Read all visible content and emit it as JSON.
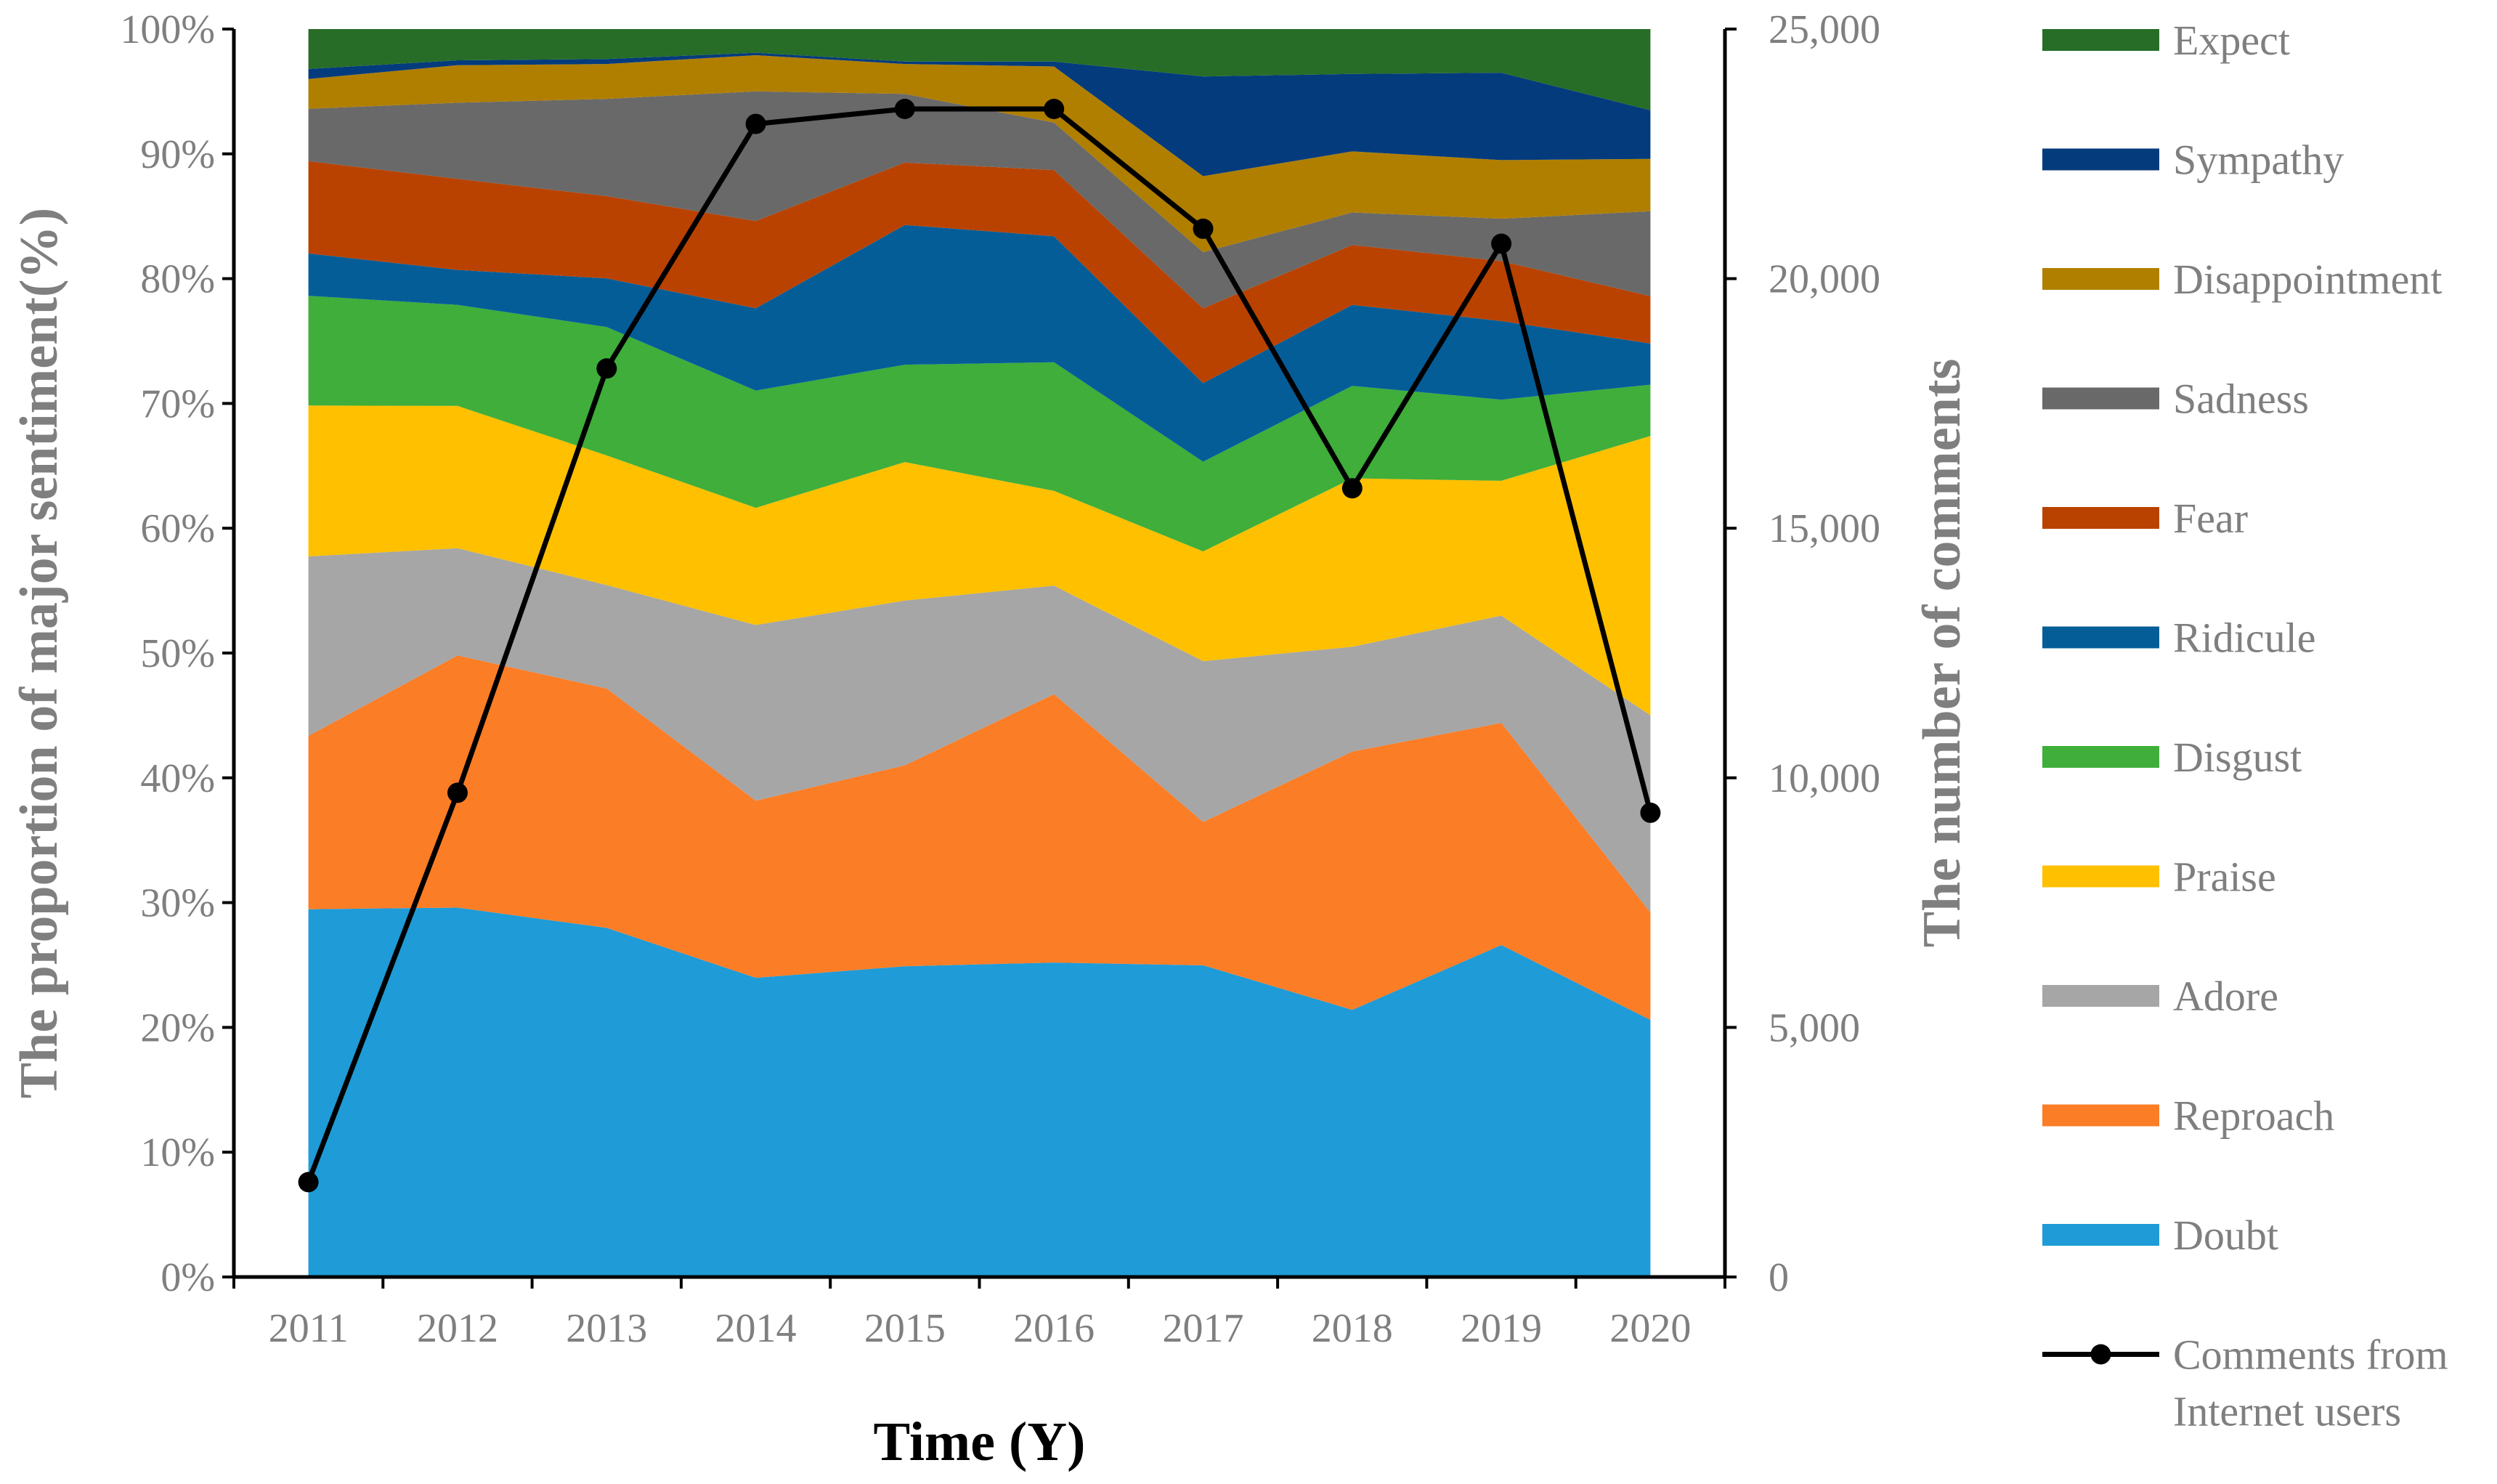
{
  "chart_data": {
    "type": "area",
    "stacked": true,
    "percent": true,
    "categories": [
      "2011",
      "2012",
      "2013",
      "2014",
      "2015",
      "2016",
      "2017",
      "2018",
      "2019",
      "2020"
    ],
    "xlabel": "Time (Y)",
    "ylabel": "The proportion of major sentiment(%)",
    "ylabel_right": "The number of comments",
    "ylim": [
      0,
      100
    ],
    "y_ticks": [
      "0%",
      "10%",
      "20%",
      "30%",
      "40%",
      "50%",
      "60%",
      "70%",
      "80%",
      "90%",
      "100%"
    ],
    "ylim_right": [
      0,
      25000
    ],
    "y_ticks_right": [
      "0",
      "5,000",
      "10,000",
      "15,000",
      "20,000",
      "25,000"
    ],
    "series": [
      {
        "name": "Doubt",
        "color": "#1f9bd7",
        "values": [
          29.5,
          29.6,
          28.0,
          24.0,
          24.9,
          25.2,
          25.0,
          21.4,
          26.6,
          20.6
        ]
      },
      {
        "name": "Reproach",
        "color": "#fb7d26",
        "values": [
          13.9,
          20.2,
          19.2,
          14.2,
          16.1,
          21.5,
          11.5,
          20.7,
          17.8,
          8.6
        ]
      },
      {
        "name": "Adore",
        "color": "#a6a6a6",
        "values": [
          14.4,
          8.6,
          8.3,
          14.1,
          13.2,
          8.7,
          12.9,
          8.4,
          8.6,
          15.8
        ]
      },
      {
        "name": "Praise",
        "color": "#ffc000",
        "values": [
          12.1,
          11.4,
          10.4,
          9.4,
          11.1,
          7.6,
          8.8,
          13.5,
          10.8,
          22.4
        ]
      },
      {
        "name": "Disgust",
        "color": "#3fae3a",
        "values": [
          8.8,
          8.1,
          10.3,
          9.4,
          7.8,
          10.3,
          7.2,
          7.4,
          6.5,
          4.1
        ]
      },
      {
        "name": "Ridicule",
        "color": "#055d98",
        "values": [
          3.4,
          2.8,
          3.9,
          6.6,
          11.2,
          10.1,
          6.3,
          6.5,
          6.3,
          3.3
        ]
      },
      {
        "name": "Fear",
        "color": "#b94200",
        "values": [
          7.4,
          7.3,
          6.6,
          7.0,
          5.0,
          5.3,
          6.0,
          4.8,
          4.8,
          3.8
        ]
      },
      {
        "name": "Sadness",
        "color": "#696969",
        "values": [
          4.2,
          6.1,
          7.8,
          10.4,
          5.5,
          3.8,
          4.5,
          2.6,
          3.4,
          6.8
        ]
      },
      {
        "name": "Disappointment",
        "color": "#b07f00",
        "values": [
          2.4,
          3.0,
          2.8,
          2.9,
          2.4,
          4.5,
          6.1,
          4.9,
          4.7,
          4.2
        ]
      },
      {
        "name": "Sympathy",
        "color": "#043b7d",
        "values": [
          0.8,
          0.4,
          0.4,
          0.2,
          0.2,
          0.4,
          8.0,
          6.2,
          7.0,
          3.9
        ]
      },
      {
        "name": "Expect",
        "color": "#276d27",
        "values": [
          3.2,
          2.5,
          2.4,
          1.9,
          2.6,
          2.6,
          3.8,
          3.6,
          3.5,
          6.5
        ]
      }
    ],
    "line_series": {
      "name": "Comments from Internet users",
      "name_lines": [
        "Comments from",
        "Internet users"
      ],
      "color": "#000000",
      "axis": "right",
      "values": [
        1900,
        9700,
        18200,
        23100,
        23400,
        23400,
        21000,
        15800,
        20700,
        9300
      ]
    },
    "legend": {
      "placement": "right",
      "order": [
        "Expect",
        "Sympathy",
        "Disappointment",
        "Sadness",
        "Fear",
        "Ridicule",
        "Disgust",
        "Praise",
        "Adore",
        "Reproach",
        "Doubt"
      ]
    }
  }
}
